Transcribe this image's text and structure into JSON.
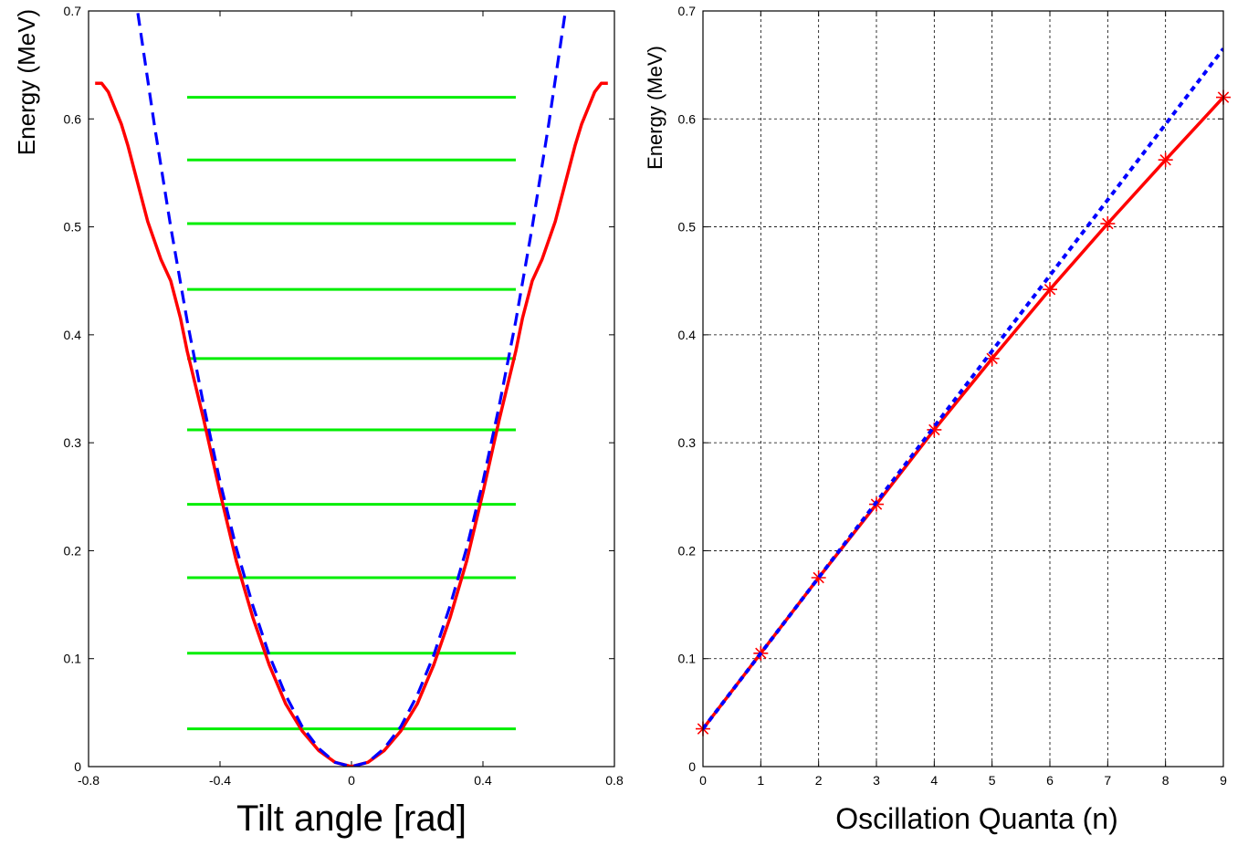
{
  "chart_data": [
    {
      "type": "line",
      "xlabel": "Tilt angle [rad]",
      "ylabel": "Energy (MeV)",
      "xlim": [
        -0.8,
        0.8
      ],
      "ylim": [
        0,
        0.7
      ],
      "xticks": [
        "-0.8",
        "-0.4",
        "0",
        "0.4",
        "0.8"
      ],
      "yticks": [
        "0",
        "0.1",
        "0.2",
        "0.3",
        "0.4",
        "0.5",
        "0.6",
        "0.7"
      ],
      "grid": false,
      "series": [
        {
          "style": "solid",
          "color": "#ff0000",
          "x": [
            -0.78,
            -0.76,
            -0.74,
            -0.72,
            -0.7,
            -0.68,
            -0.65,
            -0.62,
            -0.58,
            -0.55,
            -0.52,
            -0.5,
            -0.45,
            -0.4,
            -0.35,
            -0.3,
            -0.25,
            -0.2,
            -0.15,
            -0.1,
            -0.05,
            0,
            0.05,
            0.1,
            0.15,
            0.2,
            0.25,
            0.3,
            0.35,
            0.4,
            0.45,
            0.5,
            0.52,
            0.55,
            0.58,
            0.62,
            0.65,
            0.68,
            0.7,
            0.72,
            0.74,
            0.76,
            0.78
          ],
          "y": [
            0.633,
            0.633,
            0.625,
            0.61,
            0.595,
            0.575,
            0.54,
            0.505,
            0.47,
            0.45,
            0.415,
            0.385,
            0.322,
            0.254,
            0.19,
            0.138,
            0.094,
            0.058,
            0.033,
            0.015,
            0.004,
            0,
            0.004,
            0.015,
            0.033,
            0.058,
            0.094,
            0.138,
            0.19,
            0.254,
            0.322,
            0.385,
            0.415,
            0.45,
            0.47,
            0.505,
            0.54,
            0.575,
            0.595,
            0.61,
            0.625,
            0.633,
            0.633
          ]
        },
        {
          "style": "dashed",
          "color": "#0000ff",
          "x": [
            -0.65,
            -0.6,
            -0.55,
            -0.5,
            -0.45,
            -0.4,
            -0.35,
            -0.3,
            -0.25,
            -0.2,
            -0.15,
            -0.1,
            -0.05,
            0,
            0.05,
            0.1,
            0.15,
            0.2,
            0.25,
            0.3,
            0.35,
            0.4,
            0.45,
            0.5,
            0.55,
            0.6,
            0.65
          ],
          "y": [
            0.698,
            0.595,
            0.5,
            0.413,
            0.335,
            0.264,
            0.202,
            0.149,
            0.103,
            0.066,
            0.037,
            0.017,
            0.004,
            0,
            0.004,
            0.017,
            0.037,
            0.066,
            0.103,
            0.149,
            0.202,
            0.264,
            0.335,
            0.413,
            0.5,
            0.595,
            0.698
          ]
        }
      ],
      "levels": {
        "color": "#00ee00",
        "x_range": [
          -0.5,
          0.5
        ],
        "y": [
          0.035,
          0.105,
          0.175,
          0.243,
          0.312,
          0.378,
          0.442,
          0.503,
          0.562,
          0.62
        ]
      }
    },
    {
      "type": "line",
      "xlabel": "Oscillation Quanta (n)",
      "ylabel": "Energy (MeV)",
      "xlim": [
        0,
        9
      ],
      "ylim": [
        0,
        0.7
      ],
      "xticks": [
        "0",
        "1",
        "2",
        "3",
        "4",
        "5",
        "6",
        "7",
        "8",
        "9"
      ],
      "yticks": [
        "0",
        "0.1",
        "0.2",
        "0.3",
        "0.4",
        "0.5",
        "0.6",
        "0.7"
      ],
      "grid": true,
      "series": [
        {
          "style": "solid",
          "color": "#ff0000",
          "marker": "asterisk",
          "x": [
            0,
            1,
            2,
            3,
            4,
            5,
            6,
            7,
            8,
            9
          ],
          "y": [
            0.035,
            0.105,
            0.175,
            0.243,
            0.312,
            0.378,
            0.442,
            0.503,
            0.562,
            0.62
          ]
        },
        {
          "style": "dotted",
          "color": "#0000ff",
          "x": [
            0,
            9
          ],
          "y": [
            0.035,
            0.665
          ]
        }
      ]
    }
  ]
}
